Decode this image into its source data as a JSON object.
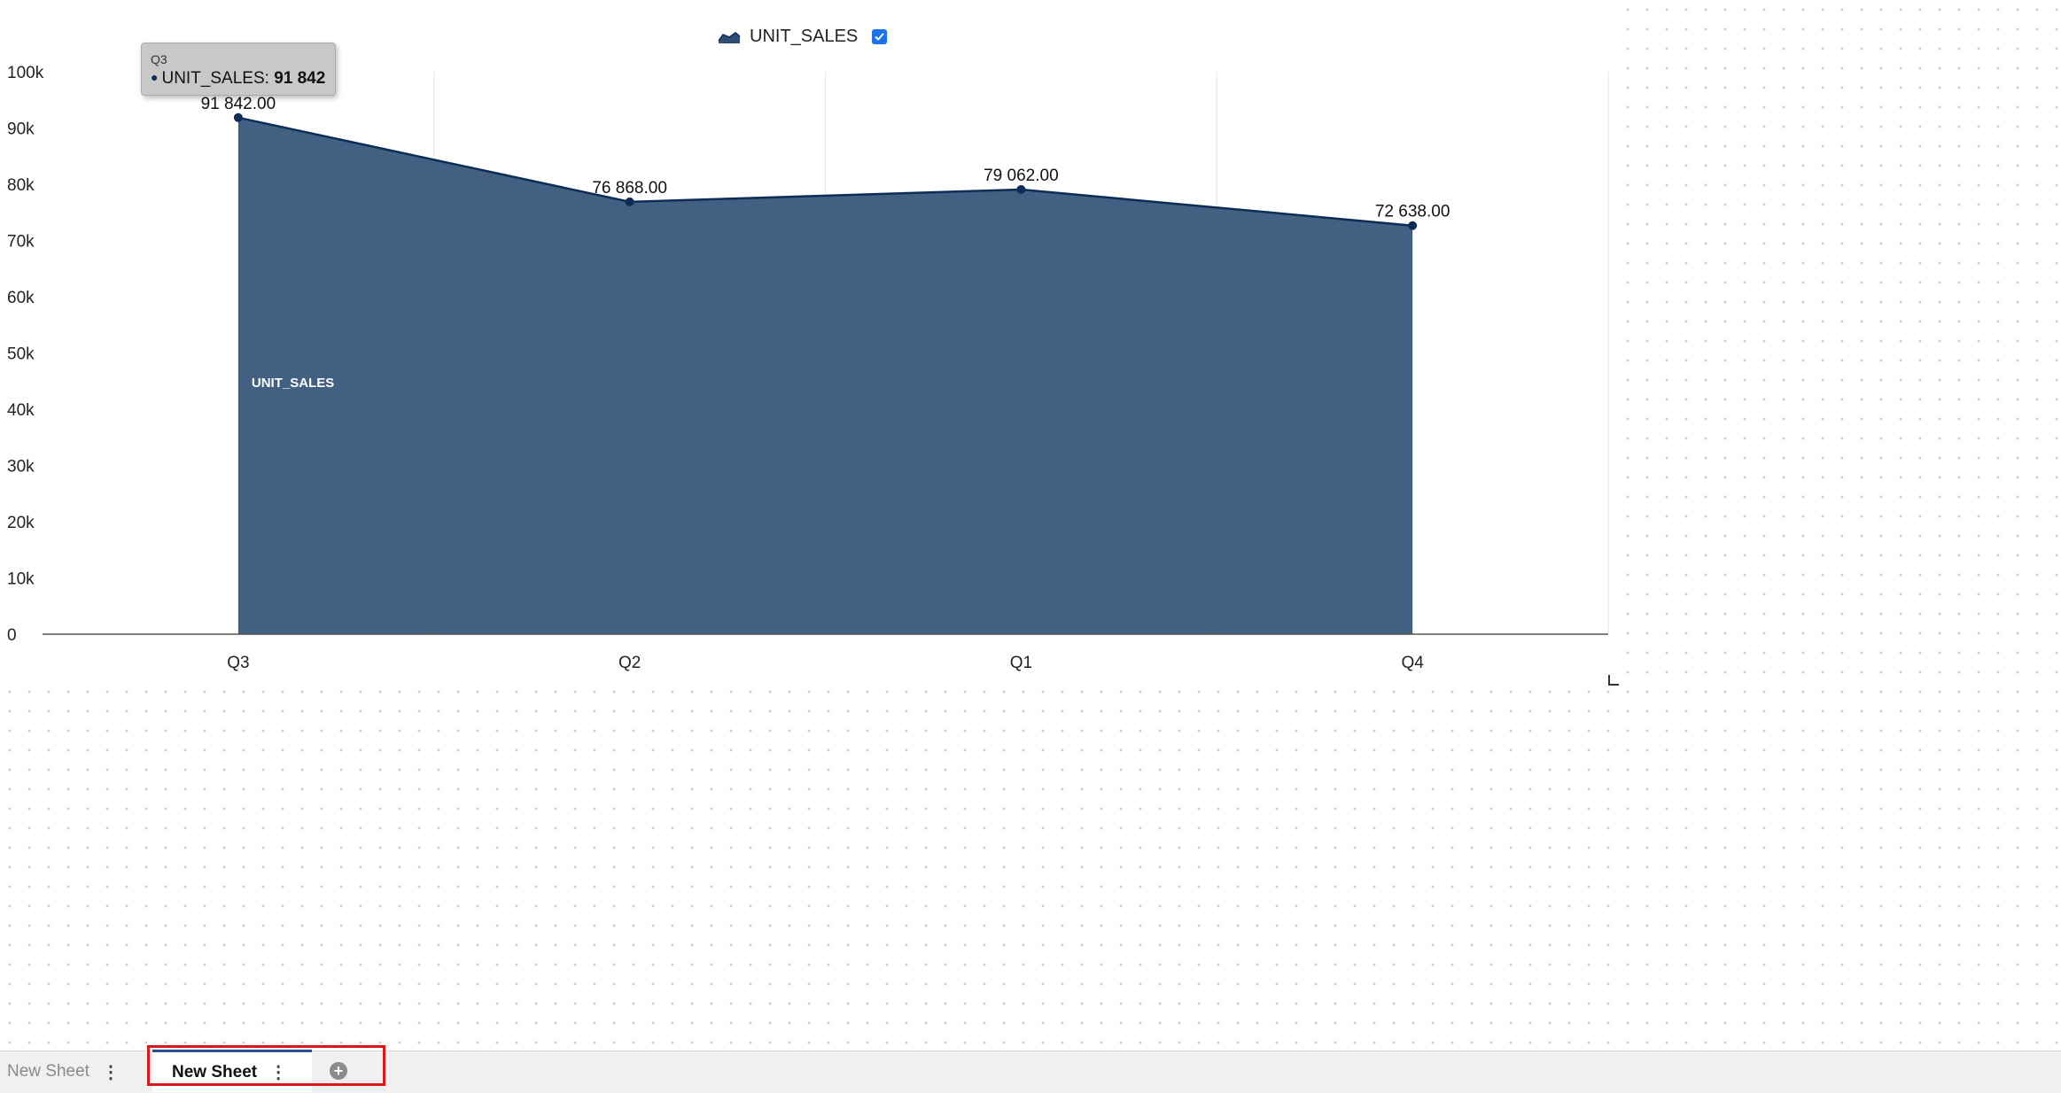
{
  "chart_data": {
    "type": "area",
    "categories": [
      "Q3",
      "Q2",
      "Q1",
      "Q4"
    ],
    "series": [
      {
        "name": "UNIT_SALES",
        "values": [
          91842,
          76868,
          79062,
          72638
        ],
        "color": "#2e4f74"
      }
    ],
    "data_labels": [
      "91 842.00",
      "76 868.00",
      "79 062.00",
      "72 638.00"
    ],
    "y_ticks": [
      "0",
      "10k",
      "20k",
      "30k",
      "40k",
      "50k",
      "60k",
      "70k",
      "80k",
      "90k",
      "100k"
    ],
    "ylim": [
      0,
      100000
    ],
    "area_label": "UNIT_SALES",
    "grid": true,
    "legend": {
      "position": "top-center",
      "label": "UNIT_SALES",
      "checked": true
    }
  },
  "tooltip": {
    "title": "Q3",
    "series": "UNIT_SALES:",
    "value": "91 842"
  },
  "tabs": [
    {
      "label": "New Sheet",
      "active": false
    },
    {
      "label": "New Sheet",
      "active": true
    }
  ],
  "colors": {
    "series_fill": "#2e4f74",
    "series_line": "#0d2d57",
    "highlight": "#d7191c"
  }
}
